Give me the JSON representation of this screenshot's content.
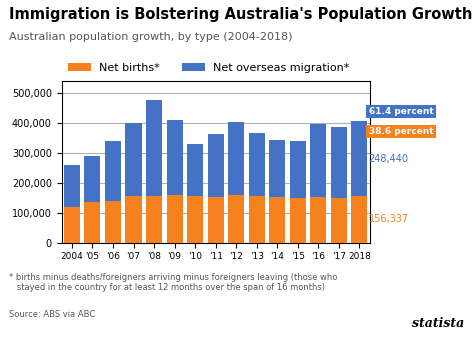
{
  "chart_data": {
    "type": "bar",
    "stacked": true,
    "title": "Immigration is Bolstering Australia's Population Growth",
    "subtitle": "Australian population growth, by type (2004-2018)",
    "categories": [
      "2004",
      "'05",
      "'06",
      "'07",
      "'08",
      "'09",
      "'10",
      "'11",
      "'12",
      "'13",
      "'14",
      "'15",
      "'16",
      "'17",
      "2018"
    ],
    "series": [
      {
        "name": "Net births*",
        "color": "#f5821f",
        "values": [
          120000,
          135000,
          140000,
          155000,
          155000,
          158000,
          155000,
          153000,
          160000,
          155000,
          153000,
          150000,
          152000,
          148000,
          156337
        ],
        "last_label": "156,337",
        "share_label": "38.6 percent"
      },
      {
        "name": "Net overseas migration*",
        "color": "#4472c4",
        "values": [
          138000,
          155000,
          200000,
          245000,
          320000,
          250000,
          175000,
          210000,
          243000,
          212000,
          190000,
          188000,
          245000,
          238000,
          248440
        ],
        "last_label": "248,440",
        "share_label": "61.4 percent"
      }
    ],
    "ylim": [
      0,
      540000
    ],
    "yticks": [
      0,
      {
        "value": 100000,
        "label": "100,000"
      },
      {
        "value": 200000,
        "label": "200,000"
      },
      {
        "value": 300000,
        "label": "300,000"
      },
      {
        "value": 400000,
        "label": "400,000"
      },
      {
        "value": 500000,
        "label": "500,000"
      }
    ],
    "grid": true,
    "legend": "lower left",
    "notes": [
      "* births minus deaths/foreigners arriving minus foreigners leaving (those who\n   stayed in the country for at least 12 months over the span of 16 months)",
      "Source: ABS via ABC"
    ],
    "credit": "statista"
  }
}
